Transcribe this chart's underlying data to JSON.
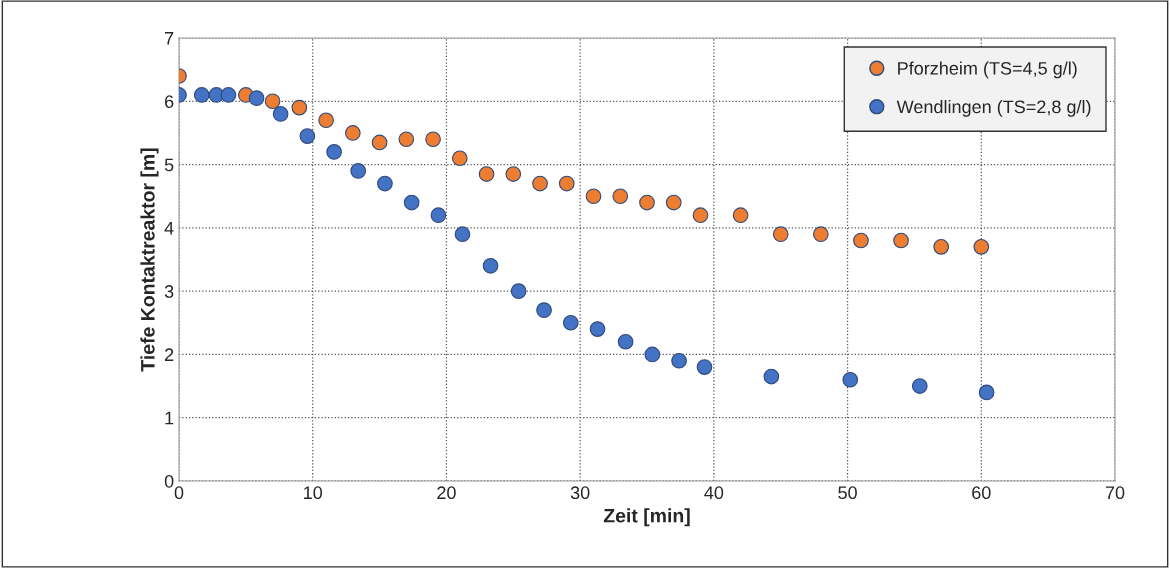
{
  "chart_data": {
    "type": "scatter",
    "xlabel": "Zeit [min]",
    "ylabel": "Tiefe Kontaktreaktor [m]",
    "xlim": [
      0,
      70
    ],
    "xticks": [
      0,
      10,
      20,
      30,
      40,
      50,
      60,
      70
    ],
    "ylim": [
      0,
      7
    ],
    "yticks": [
      0,
      1,
      2,
      3,
      4,
      5,
      6,
      7
    ],
    "grid": true,
    "legend": "top right",
    "marker": "circle",
    "series": [
      {
        "name": "Pforzheim (TS=4,5 g/l)",
        "color": "#ed7d31",
        "x": [
          0,
          5,
          7,
          9,
          11,
          13,
          15,
          17,
          19,
          21,
          23,
          25,
          27,
          29,
          31,
          33,
          35,
          37,
          39,
          42,
          45,
          48,
          51,
          54,
          57,
          60
        ],
        "values": [
          6.4,
          6.1,
          6.0,
          5.9,
          5.7,
          5.5,
          5.35,
          5.4,
          5.4,
          5.1,
          4.85,
          4.85,
          4.7,
          4.7,
          4.5,
          4.5,
          4.4,
          4.4,
          4.2,
          4.2,
          3.9,
          3.9,
          3.8,
          3.8,
          3.7,
          3.7
        ]
      },
      {
        "name": "Wendlingen (TS=2,8 g/l)",
        "color": "#4472c4",
        "x": [
          0,
          1.7,
          2.8,
          3.7,
          5.8,
          7.6,
          9.6,
          11.6,
          13.4,
          15.4,
          17.4,
          19.4,
          21.2,
          23.3,
          25.4,
          27.3,
          29.3,
          31.3,
          33.4,
          35.4,
          37.4,
          39.3,
          44.3,
          50.2,
          55.4,
          60.4
        ],
        "values": [
          6.1,
          6.1,
          6.1,
          6.1,
          6.05,
          5.8,
          5.45,
          5.2,
          4.9,
          4.7,
          4.4,
          4.2,
          3.9,
          3.4,
          3.0,
          2.7,
          2.5,
          2.4,
          2.2,
          2.0,
          1.9,
          1.8,
          1.65,
          1.6,
          1.5,
          1.4
        ]
      }
    ]
  }
}
